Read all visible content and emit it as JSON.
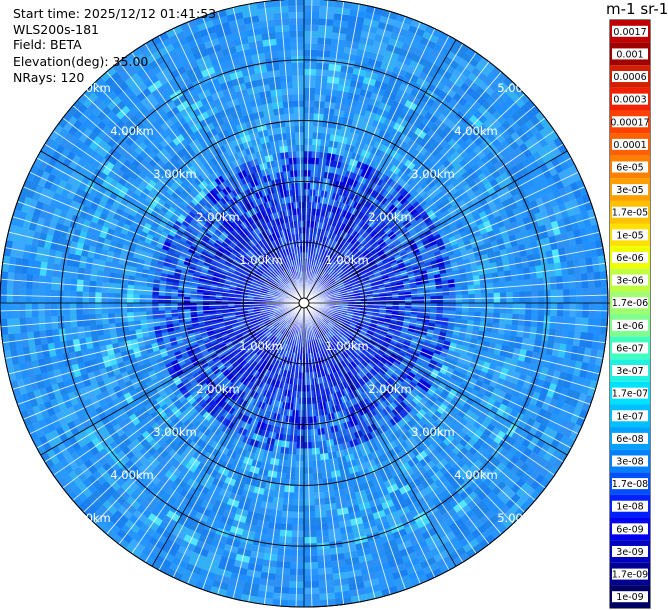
{
  "header": {
    "start_time": "Start time: 2025/12/12 01:41:53",
    "instrument": "WLS200s-181",
    "field": "Field: BETA",
    "elevation": "Elevation(deg): 35.00",
    "nrays": "NRays: 120"
  },
  "colorbar": {
    "title": "m-1 sr-1",
    "labels": [
      "0.0017",
      "0.001",
      "0.0006",
      "0.0003",
      "0.00017",
      "0.0001",
      "6e-05",
      "3e-05",
      "1.7e-05",
      "1e-05",
      "6e-06",
      "3e-06",
      "1.7e-06",
      "1e-06",
      "6e-07",
      "3e-07",
      "1.7e-07",
      "1e-07",
      "6e-08",
      "3e-08",
      "1.7e-08",
      "1e-08",
      "6e-09",
      "3e-09",
      "1.7e-09",
      "1e-09"
    ],
    "colors": [
      "#c00000",
      "#a00000",
      "#d02000",
      "#f02000",
      "#ff4000",
      "#ff6000",
      "#ff8000",
      "#ffa000",
      "#ffc000",
      "#ffe000",
      "#f0ff00",
      "#c0ff40",
      "#a0ff70",
      "#80ff90",
      "#40ffc0",
      "#20f0e0",
      "#00e0ff",
      "#00c0ff",
      "#00a0ff",
      "#0080ff",
      "#0050ff",
      "#0020ff",
      "#0000f0",
      "#0000c0",
      "#000090",
      "#000060"
    ]
  },
  "chart_data": {
    "type": "heatmap",
    "projection": "polar (PPI)",
    "range_rings_km": [
      1.0,
      2.0,
      3.0,
      4.0,
      5.0
    ],
    "ring_labels": [
      "1.00km",
      "2.00km",
      "3.00km",
      "4.00km",
      "5.00km"
    ],
    "max_range_km": 5.0,
    "nrays": 120,
    "dominant_value_range": [
      "6e-08",
      "1e-07"
    ],
    "inner_zone_value_range": [
      "1e-08",
      "3e-08"
    ]
  }
}
